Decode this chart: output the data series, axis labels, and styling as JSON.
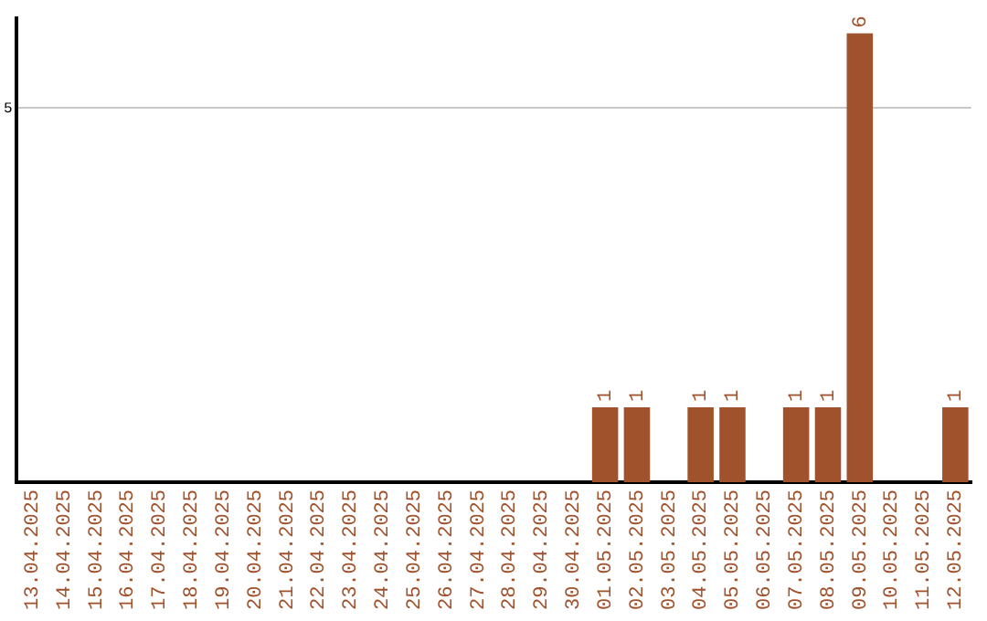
{
  "chart_data": {
    "type": "bar",
    "categories": [
      "13.04.2025",
      "14.04.2025",
      "15.04.2025",
      "16.04.2025",
      "17.04.2025",
      "18.04.2025",
      "19.04.2025",
      "20.04.2025",
      "21.04.2025",
      "22.04.2025",
      "23.04.2025",
      "24.04.2025",
      "25.04.2025",
      "26.04.2025",
      "27.04.2025",
      "28.04.2025",
      "29.04.2025",
      "30.04.2025",
      "01.05.2025",
      "02.05.2025",
      "03.05.2025",
      "04.05.2025",
      "05.05.2025",
      "06.05.2025",
      "07.05.2025",
      "08.05.2025",
      "09.05.2025",
      "10.05.2025",
      "11.05.2025",
      "12.05.2025"
    ],
    "values": [
      null,
      null,
      null,
      null,
      null,
      null,
      null,
      null,
      null,
      null,
      null,
      null,
      null,
      null,
      null,
      null,
      null,
      null,
      1,
      1,
      null,
      1,
      1,
      null,
      1,
      1,
      6,
      null,
      null,
      1
    ],
    "color": "#a0522d",
    "ylim": [
      0,
      6.2
    ],
    "yticks": [
      5
    ],
    "grid": "y",
    "data_labels": true,
    "legend": false
  }
}
